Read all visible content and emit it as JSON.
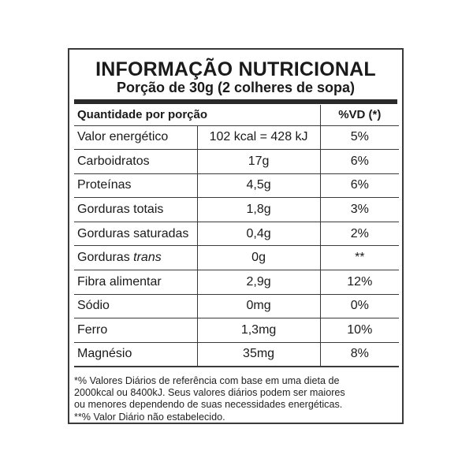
{
  "label": {
    "title": "INFORMAÇÃO NUTRICIONAL",
    "serving": "Porção de 30g (2 colheres de sopa)",
    "header": {
      "quantity": "Quantidade por porção",
      "vd": "%VD (*)"
    },
    "rows": [
      {
        "name": "Valor energético",
        "name_italic": "",
        "amount": "102 kcal = 428 kJ",
        "vd": "5%"
      },
      {
        "name": "Carboidratos",
        "name_italic": "",
        "amount": "17g",
        "vd": "6%"
      },
      {
        "name": "Proteínas",
        "name_italic": "",
        "amount": "4,5g",
        "vd": "6%"
      },
      {
        "name": "Gorduras totais",
        "name_italic": "",
        "amount": "1,8g",
        "vd": "3%"
      },
      {
        "name": "Gorduras saturadas",
        "name_italic": "",
        "amount": "0,4g",
        "vd": "2%"
      },
      {
        "name": "Gorduras ",
        "name_italic": "trans",
        "amount": "0g",
        "vd": "**"
      },
      {
        "name": "Fibra alimentar",
        "name_italic": "",
        "amount": "2,9g",
        "vd": "12%"
      },
      {
        "name": "Sódio",
        "name_italic": "",
        "amount": "0mg",
        "vd": "0%"
      },
      {
        "name": "Ferro",
        "name_italic": "",
        "amount": "1,3mg",
        "vd": "10%"
      },
      {
        "name": "Magnésio",
        "name_italic": "",
        "amount": "35mg",
        "vd": "8%"
      }
    ],
    "footnotes": [
      "*% Valores Diários de referência com base em uma dieta de",
      "2000kcal ou 8400kJ. Seus valores diários podem ser maiores",
      "ou menores dependendo de suas necessidades energéticas.",
      "**% Valor Diário não estabelecido."
    ]
  }
}
